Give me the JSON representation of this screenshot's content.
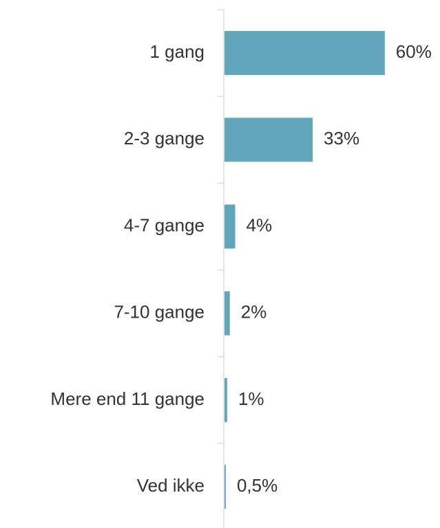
{
  "chart_data": {
    "type": "bar",
    "orientation": "horizontal",
    "categories": [
      "1 gang",
      "2-3 gange",
      "4-7 gange",
      "7-10 gange",
      "Mere end 11 gange",
      "Ved ikke"
    ],
    "values": [
      60,
      33,
      4,
      2,
      1,
      0.5
    ],
    "value_labels": [
      "60%",
      "33%",
      "4%",
      "2%",
      "1%",
      "0,5%"
    ],
    "color": "#62a6bb"
  }
}
